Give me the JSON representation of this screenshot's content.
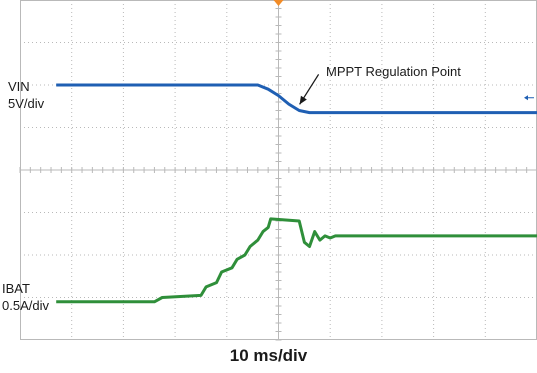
{
  "chart_data": {
    "type": "line",
    "title": "",
    "xlabel": "10 ms/div",
    "x_divisions": 10,
    "y_divisions": 8,
    "annotation": {
      "text": "MPPT Regulation Point",
      "target_series": "VIN",
      "x": 5.35
    },
    "series": [
      {
        "name": "VIN",
        "scale": "5V/div",
        "color": "#1f5fb3",
        "x": [
          0.7,
          4.6,
          4.8,
          5.0,
          5.2,
          5.4,
          5.6,
          10.0
        ],
        "y": [
          6.0,
          6.0,
          5.9,
          5.75,
          5.55,
          5.4,
          5.35,
          5.35
        ]
      },
      {
        "name": "IBAT",
        "scale": "0.5A/div",
        "color": "#2f8f3a",
        "x": [
          0.7,
          2.6,
          2.75,
          3.5,
          3.6,
          3.8,
          3.9,
          4.1,
          4.2,
          4.35,
          4.45,
          4.6,
          4.7,
          4.8,
          4.85,
          5.4,
          5.5,
          5.6,
          5.7,
          5.8,
          5.9,
          6.0,
          6.1,
          10.0
        ],
        "y": [
          0.9,
          0.9,
          1.0,
          1.05,
          1.25,
          1.35,
          1.6,
          1.7,
          1.9,
          2.0,
          2.2,
          2.35,
          2.55,
          2.65,
          2.85,
          2.8,
          2.3,
          2.2,
          2.55,
          2.35,
          2.45,
          2.4,
          2.45,
          2.45
        ]
      }
    ]
  }
}
